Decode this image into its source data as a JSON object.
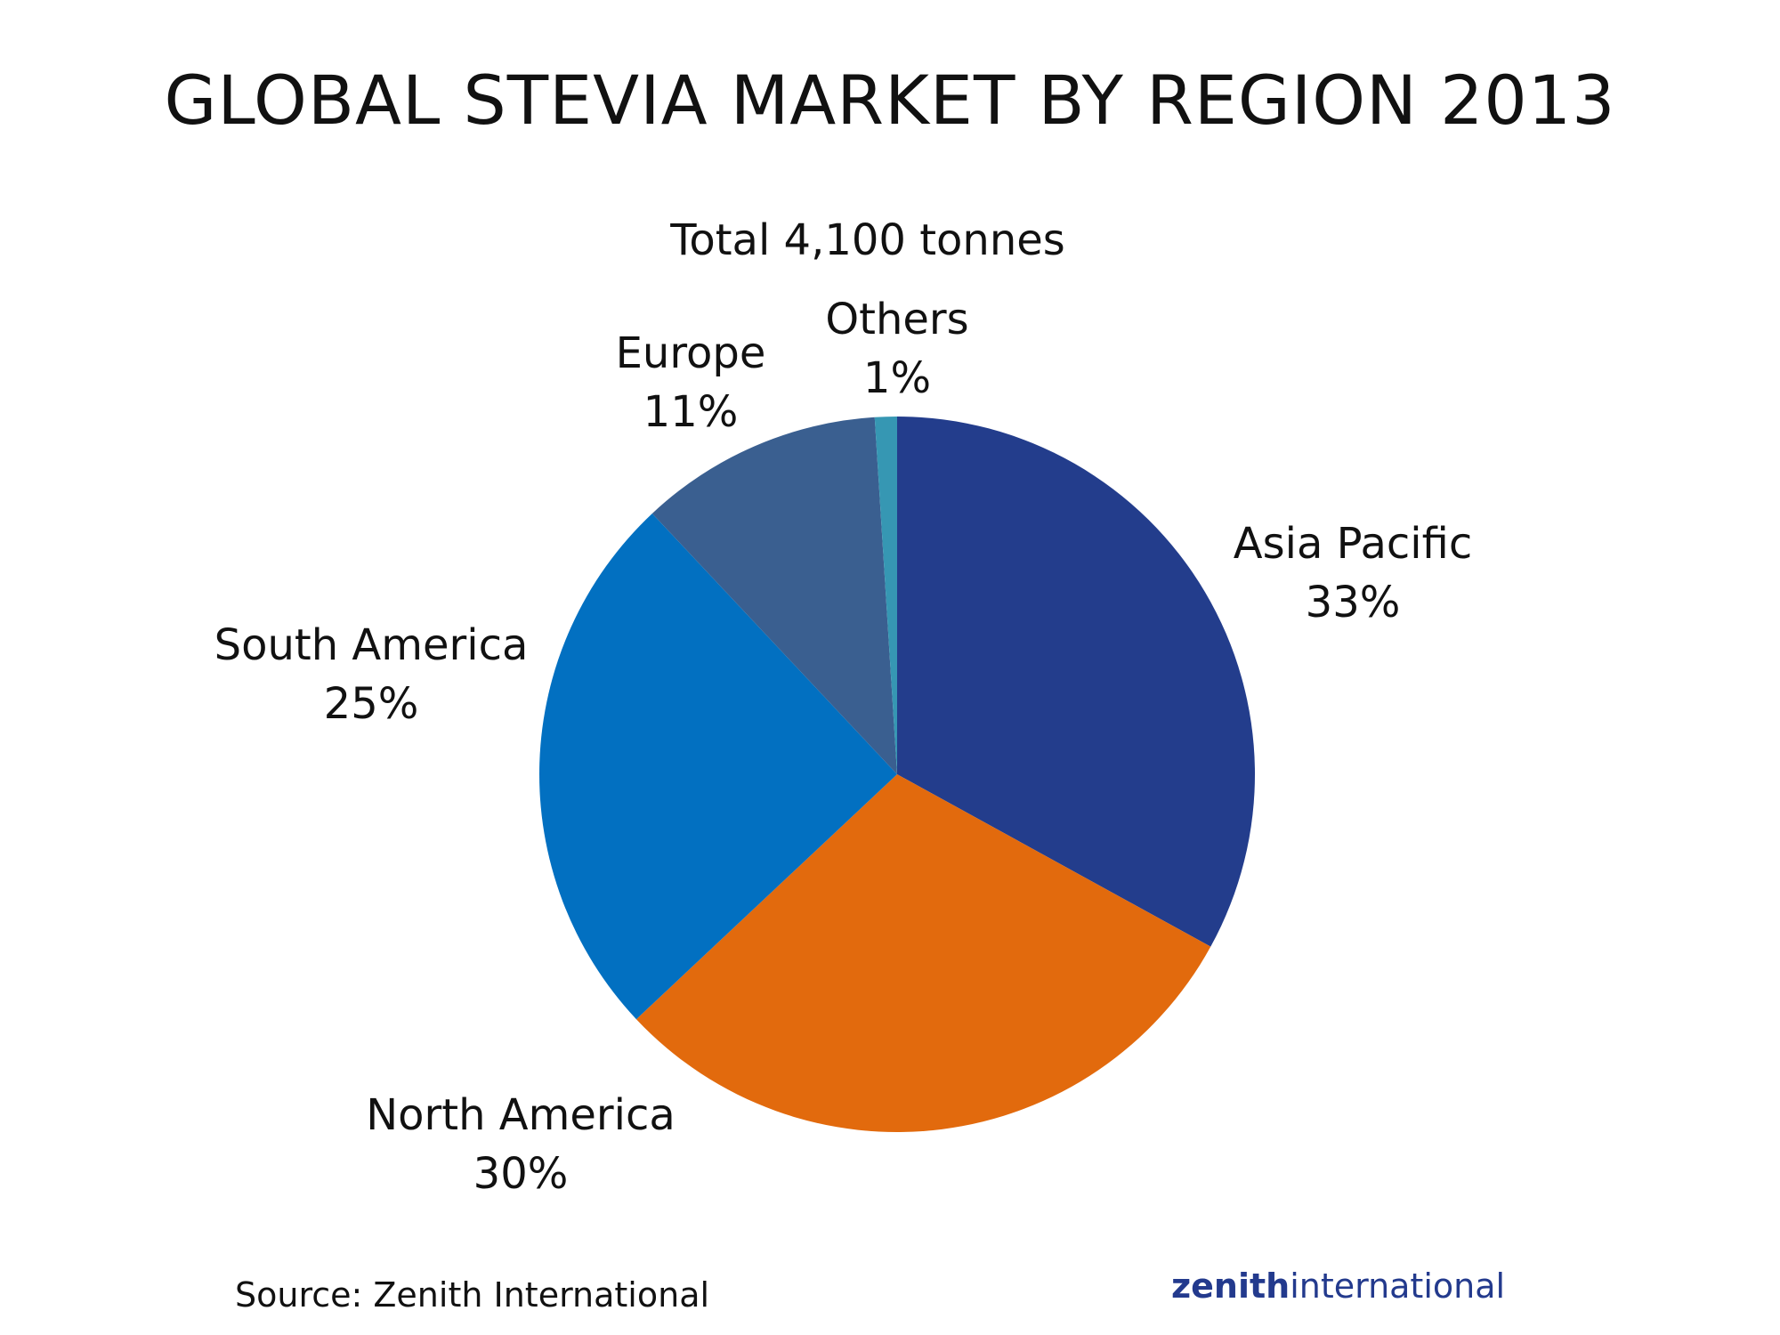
{
  "chart_data": {
    "type": "pie",
    "title": "GLOBAL STEVIA MARKET BY REGION 2013",
    "subtitle": "Total 4,100 tonnes",
    "slices": [
      {
        "label": "Asia Pacific",
        "value": 33,
        "value_label": "33%",
        "color": "#233d8c"
      },
      {
        "label": "North America",
        "value": 30,
        "value_label": "30%",
        "color": "#e26a0d"
      },
      {
        "label": "South America",
        "value": 25,
        "value_label": "25%",
        "color": "#0270c1"
      },
      {
        "label": "Europe",
        "value": 11,
        "value_label": "11%",
        "color": "#3a5f90"
      },
      {
        "label": "Others",
        "value": 1,
        "value_label": "1%",
        "color": "#3697b3"
      }
    ]
  },
  "footer": {
    "source": "Source: Zenith International"
  },
  "logo": {
    "bold": "zenith",
    "regular": "international"
  }
}
